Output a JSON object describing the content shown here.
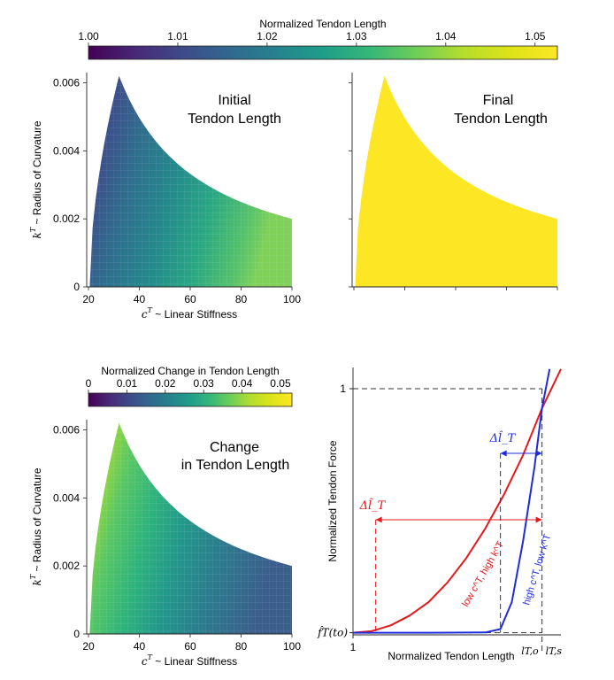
{
  "chart_data": [
    {
      "type": "colorbar",
      "title": "Normalized Tendon Length",
      "range": [
        1.0,
        1.0525
      ],
      "ticks": [
        "1.00",
        "1.01",
        "1.02",
        "1.03",
        "1.04",
        "1.05"
      ],
      "tick_values": [
        1.0,
        1.01,
        1.02,
        1.03,
        1.04,
        1.05
      ],
      "colormap": "viridis"
    },
    {
      "type": "heatmap",
      "annotation": [
        "Initial",
        "Tendon Length"
      ],
      "xlabel": "c^T ~ Linear Stiffness",
      "ylabel": "k^T ~ Radius of Curvature",
      "xlim": [
        20,
        100
      ],
      "ylim": [
        0,
        0.0063
      ],
      "xticks": [
        "20",
        "40",
        "60",
        "80",
        "100"
      ],
      "yticks": [
        "0",
        "0.002",
        "0.004",
        "0.006"
      ],
      "ytick_values": [
        0,
        0.002,
        0.004,
        0.006
      ],
      "boundary": {
        "peak": [
          32,
          0.0062
        ],
        "min_stiffness": 20.5,
        "right_edge": [
          100,
          0.002
        ]
      },
      "color_min_at": [
        20,
        0.0062
      ],
      "color_min": 1.0,
      "color_max_at": [
        100,
        0
      ],
      "color_max": 1.05
    },
    {
      "type": "heatmap",
      "annotation": [
        "Final",
        "Tendon Length"
      ],
      "xlim": [
        20,
        100
      ],
      "ylim": [
        0,
        0.0063
      ],
      "uniform_value": 1.05,
      "uniform_color": "#fde725"
    },
    {
      "type": "colorbar",
      "title": "Normalized Change in Tendon Length",
      "range": [
        0.0,
        0.053
      ],
      "ticks": [
        "0",
        "0.01",
        "0.02",
        "0.03",
        "0.04",
        "0.05"
      ],
      "tick_values": [
        0,
        0.01,
        0.02,
        0.03,
        0.04,
        0.05
      ],
      "colormap": "viridis"
    },
    {
      "type": "heatmap",
      "annotation": [
        "Change",
        "in Tendon Length"
      ],
      "xlabel": "c^T ~ Linear Stiffness",
      "ylabel": "k^T ~ Radius of Curvature",
      "xlim": [
        20,
        100
      ],
      "ylim": [
        0,
        0.0063
      ],
      "xticks": [
        "20",
        "40",
        "60",
        "80",
        "100"
      ],
      "yticks": [
        "0",
        "0.002",
        "0.004",
        "0.006"
      ],
      "ytick_values": [
        0,
        0.002,
        0.004,
        0.006
      ],
      "color_max_at": [
        20,
        0.0062
      ],
      "color_max": 0.052,
      "color_min_at": [
        100,
        0
      ],
      "color_min": 0.003
    },
    {
      "type": "line",
      "xlabel": "Normalized Tendon Length",
      "ylabel": "Normalized Tendon Force",
      "xtick_1": "1",
      "ytick_1": "1",
      "ytick_0": "f̂_T(t_o)",
      "xtick_lo": "l_{T,o}",
      "xtick_ls": "l_{T,s}",
      "series": [
        {
          "name": "low c^T, high k^T",
          "color": "#e31a1c",
          "x": [
            1.0,
            1.005,
            1.01,
            1.015,
            1.02,
            1.025,
            1.03,
            1.035,
            1.04,
            1.045,
            1.05,
            1.055
          ],
          "y": [
            0.005,
            0.012,
            0.035,
            0.075,
            0.13,
            0.21,
            0.31,
            0.43,
            0.57,
            0.73,
            0.92,
            1.08
          ]
        },
        {
          "name": "high c^T, low k^T",
          "color": "#1f2adb",
          "x": [
            1.0,
            1.02,
            1.035,
            1.039,
            1.042,
            1.045,
            1.048,
            1.05,
            1.052
          ],
          "y": [
            0.005,
            0.005,
            0.006,
            0.02,
            0.13,
            0.38,
            0.68,
            0.92,
            1.08
          ]
        }
      ],
      "delta_red": "Δl̂_T",
      "delta_blue": "Δl̂_T",
      "red_x_start": 1.006,
      "blue_x_start": 1.039,
      "x_end": 1.05
    }
  ]
}
